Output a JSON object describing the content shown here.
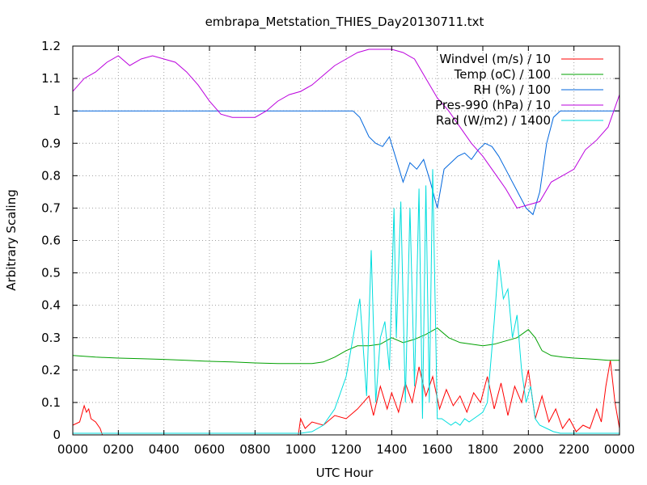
{
  "chart_data": {
    "type": "line",
    "title": "embrapa_Metstation_THIES_Day20130711.txt",
    "xlabel": "UTC Hour",
    "ylabel": "Arbitrary Scaling",
    "xlim": [
      0,
      24
    ],
    "ylim": [
      0,
      1.2
    ],
    "grid": true,
    "legend_position": "top-right",
    "x_ticks": [
      "0000",
      "0200",
      "0400",
      "0600",
      "0800",
      "1000",
      "1200",
      "1400",
      "1600",
      "1800",
      "2000",
      "2200",
      "0000"
    ],
    "y_ticks": [
      "0",
      "0.1",
      "0.2",
      "0.3",
      "0.4",
      "0.5",
      "0.6",
      "0.7",
      "0.8",
      "0.9",
      "1",
      "1.1",
      "1.2"
    ],
    "series": [
      {
        "name": "Windvel (m/s) / 10",
        "color": "#ff0000",
        "x": [
          0,
          0.3,
          0.5,
          0.6,
          0.7,
          0.8,
          1.0,
          1.2,
          1.3,
          1.5,
          2,
          4,
          6,
          8,
          9.9,
          10.0,
          10.2,
          10.5,
          11,
          11.5,
          12,
          12.5,
          13,
          13.2,
          13.5,
          13.8,
          14,
          14.3,
          14.6,
          14.9,
          15.2,
          15.5,
          15.8,
          16.1,
          16.4,
          16.7,
          17,
          17.3,
          17.6,
          17.9,
          18.2,
          18.5,
          18.8,
          19.1,
          19.4,
          19.7,
          20,
          20.3,
          20.6,
          20.9,
          21.2,
          21.5,
          21.8,
          22.1,
          22.4,
          22.7,
          23,
          23.2,
          23.4,
          23.6,
          23.8,
          24
        ],
        "y": [
          0.03,
          0.04,
          0.09,
          0.07,
          0.08,
          0.05,
          0.04,
          0.02,
          0,
          0,
          0,
          0,
          0,
          0,
          0,
          0.05,
          0.02,
          0.04,
          0.03,
          0.06,
          0.05,
          0.08,
          0.12,
          0.06,
          0.15,
          0.08,
          0.13,
          0.07,
          0.16,
          0.1,
          0.21,
          0.12,
          0.18,
          0.08,
          0.14,
          0.09,
          0.12,
          0.07,
          0.13,
          0.1,
          0.18,
          0.08,
          0.16,
          0.06,
          0.15,
          0.1,
          0.2,
          0.05,
          0.12,
          0.04,
          0.08,
          0.02,
          0.05,
          0.01,
          0.03,
          0.02,
          0.08,
          0.04,
          0.15,
          0.23,
          0.1,
          0.02
        ]
      },
      {
        "name": "Temp (oC) / 100",
        "color": "#00a000",
        "x": [
          0,
          1,
          2,
          3,
          4,
          5,
          6,
          7,
          8,
          9,
          10,
          10.5,
          11,
          11.5,
          12,
          12.5,
          13,
          13.5,
          14,
          14.5,
          15,
          15.5,
          16,
          16.5,
          17,
          17.5,
          18,
          18.5,
          19,
          19.5,
          20,
          20.3,
          20.6,
          21,
          21.5,
          22,
          22.5,
          23,
          23.5,
          24
        ],
        "y": [
          0.245,
          0.24,
          0.237,
          0.235,
          0.233,
          0.23,
          0.227,
          0.225,
          0.222,
          0.22,
          0.22,
          0.22,
          0.225,
          0.24,
          0.26,
          0.275,
          0.275,
          0.28,
          0.3,
          0.285,
          0.295,
          0.31,
          0.33,
          0.3,
          0.285,
          0.28,
          0.275,
          0.28,
          0.29,
          0.3,
          0.325,
          0.3,
          0.26,
          0.245,
          0.24,
          0.237,
          0.235,
          0.233,
          0.23,
          0.23
        ]
      },
      {
        "name": "RH (%) / 100",
        "color": "#0066dd",
        "x": [
          0,
          2,
          4,
          6,
          8,
          10,
          12,
          12.3,
          12.6,
          13,
          13.3,
          13.6,
          13.9,
          14.2,
          14.5,
          14.8,
          15.1,
          15.4,
          15.7,
          16,
          16.3,
          16.6,
          16.9,
          17.2,
          17.5,
          17.8,
          18.1,
          18.4,
          18.7,
          19,
          19.3,
          19.6,
          19.9,
          20.2,
          20.5,
          20.8,
          21.1,
          21.4,
          21.7,
          22,
          22.5,
          23,
          23.5,
          24
        ],
        "y": [
          1,
          1,
          1,
          1,
          1,
          1,
          1,
          1,
          0.98,
          0.92,
          0.9,
          0.89,
          0.92,
          0.85,
          0.78,
          0.84,
          0.82,
          0.85,
          0.78,
          0.7,
          0.82,
          0.84,
          0.86,
          0.87,
          0.85,
          0.88,
          0.9,
          0.89,
          0.86,
          0.82,
          0.78,
          0.74,
          0.7,
          0.68,
          0.75,
          0.9,
          0.98,
          1,
          1,
          1,
          1,
          1,
          1,
          1
        ]
      },
      {
        "name": "Pres-990 (hPa) / 10",
        "color": "#bb00dd",
        "x": [
          0,
          0.5,
          1,
          1.5,
          2,
          2.5,
          3,
          3.5,
          4,
          4.5,
          5,
          5.5,
          6,
          6.5,
          7,
          7.5,
          8,
          8.5,
          9,
          9.5,
          10,
          10.5,
          11,
          11.5,
          12,
          12.5,
          13,
          13.5,
          14,
          14.5,
          15,
          15.5,
          16,
          16.5,
          17,
          17.5,
          18,
          18.5,
          19,
          19.5,
          20,
          20.5,
          21,
          21.5,
          22,
          22.5,
          23,
          23.5,
          24
        ],
        "y": [
          1.06,
          1.1,
          1.12,
          1.15,
          1.17,
          1.14,
          1.16,
          1.17,
          1.16,
          1.15,
          1.12,
          1.08,
          1.03,
          0.99,
          0.98,
          0.98,
          0.98,
          1.0,
          1.03,
          1.05,
          1.06,
          1.08,
          1.11,
          1.14,
          1.16,
          1.18,
          1.19,
          1.19,
          1.19,
          1.18,
          1.16,
          1.1,
          1.04,
          1.0,
          0.95,
          0.9,
          0.86,
          0.81,
          0.76,
          0.7,
          0.71,
          0.72,
          0.78,
          0.8,
          0.82,
          0.88,
          0.91,
          0.95,
          1.05
        ]
      },
      {
        "name": "Rad (W/m2) / 1400",
        "color": "#00dddd",
        "x": [
          0,
          2,
          4,
          6,
          8,
          10,
          10.5,
          11,
          11.5,
          12,
          12.3,
          12.6,
          12.9,
          13.1,
          13.3,
          13.5,
          13.7,
          13.9,
          14.1,
          14.2,
          14.4,
          14.6,
          14.8,
          15,
          15.2,
          15.35,
          15.5,
          15.65,
          15.8,
          16,
          16.2,
          16.4,
          16.6,
          16.8,
          17,
          17.2,
          17.4,
          17.6,
          17.8,
          18,
          18.2,
          18.5,
          18.7,
          18.9,
          19.1,
          19.3,
          19.5,
          19.7,
          19.9,
          20.1,
          20.3,
          20.5,
          20.8,
          21.1,
          21.4,
          21.7,
          22,
          22.5,
          23,
          23.5,
          24
        ],
        "y": [
          0.005,
          0.005,
          0.005,
          0.005,
          0.005,
          0.005,
          0.01,
          0.03,
          0.08,
          0.18,
          0.3,
          0.42,
          0.12,
          0.57,
          0.1,
          0.3,
          0.35,
          0.2,
          0.7,
          0.3,
          0.72,
          0.1,
          0.7,
          0.15,
          0.76,
          0.05,
          0.77,
          0.1,
          0.82,
          0.05,
          0.05,
          0.04,
          0.03,
          0.04,
          0.03,
          0.05,
          0.04,
          0.05,
          0.06,
          0.07,
          0.1,
          0.35,
          0.54,
          0.42,
          0.45,
          0.3,
          0.37,
          0.2,
          0.1,
          0.15,
          0.05,
          0.03,
          0.02,
          0.01,
          0.005,
          0.005,
          0.005,
          0.005,
          0.005,
          0.005,
          0.005
        ]
      }
    ]
  }
}
